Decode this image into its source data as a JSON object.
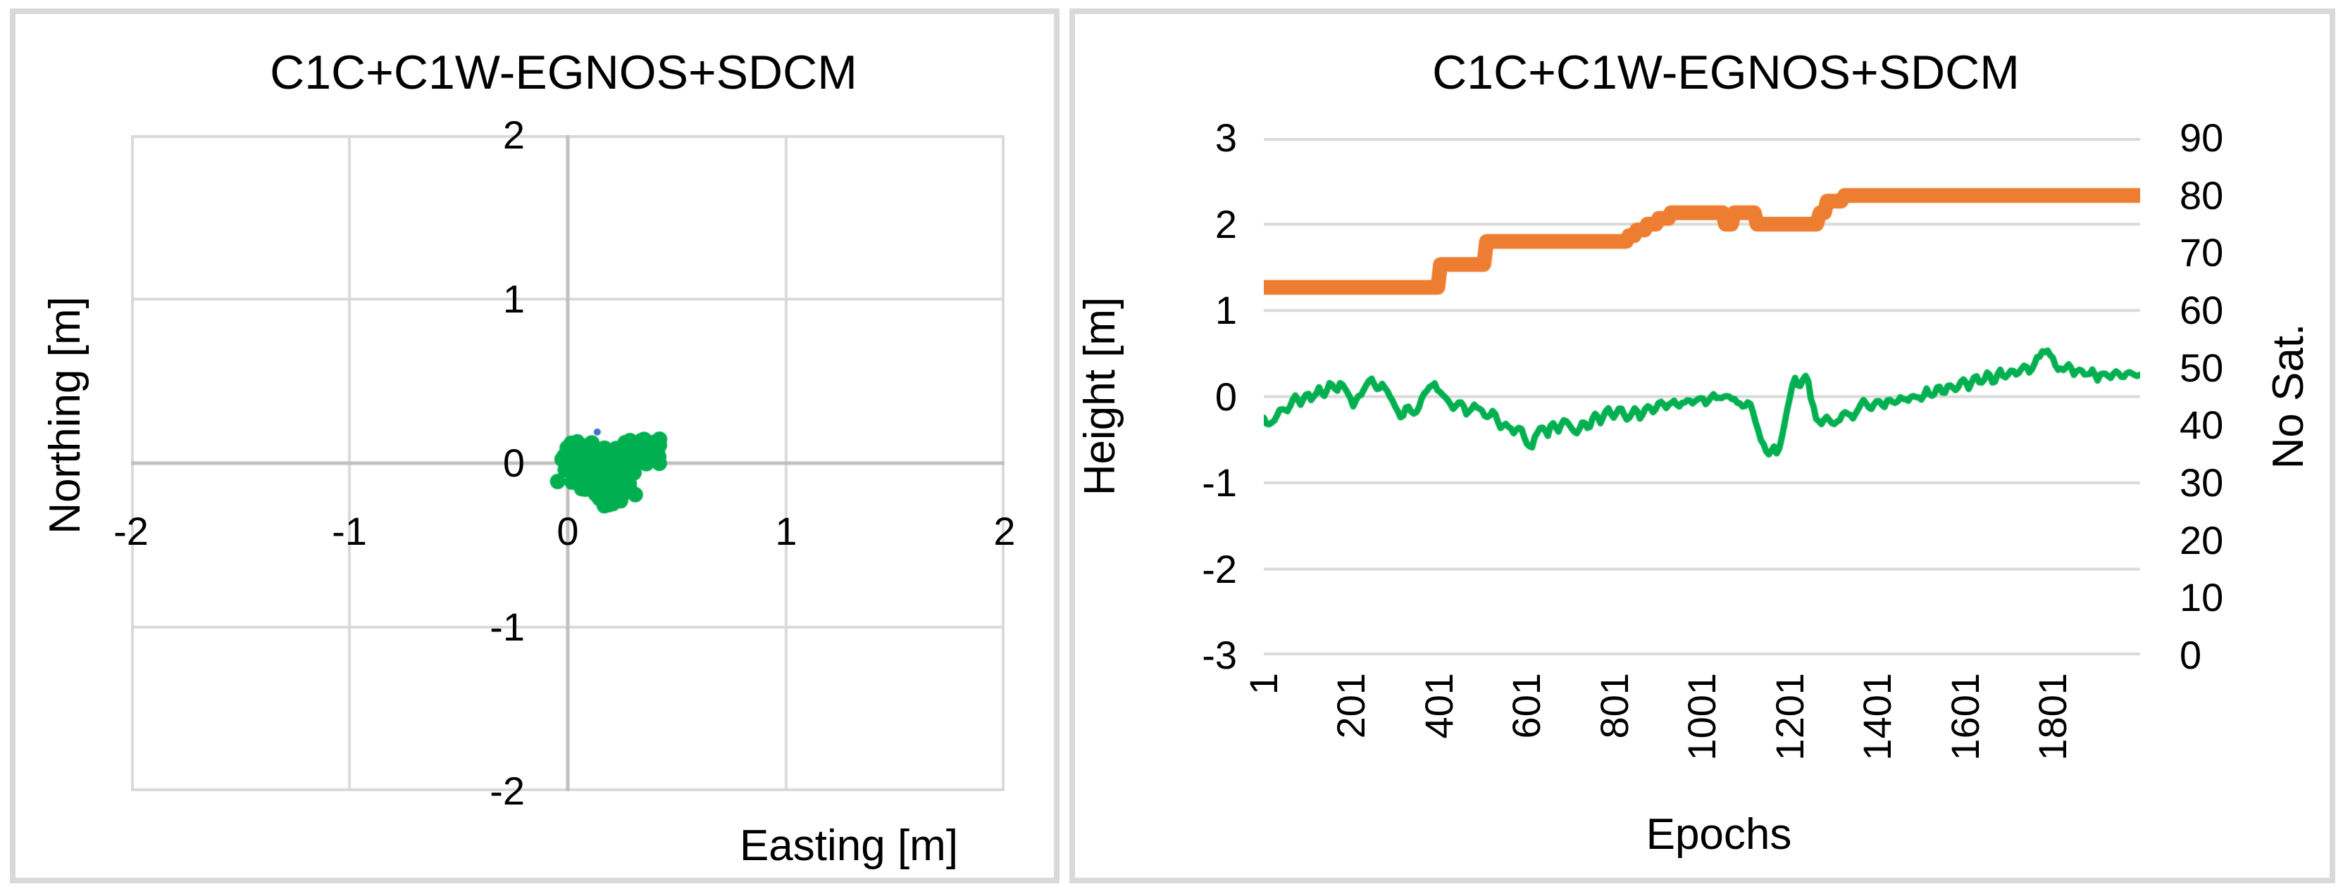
{
  "page": {
    "background": "#ffffff",
    "panel_border_color": "#d9d9d9"
  },
  "chart_data": [
    {
      "type": "scatter",
      "title": "C1C+C1W-EGNOS+SDCM",
      "xlabel": "Easting [m]",
      "ylabel": "Northing [m]",
      "xlim": [
        -2,
        2
      ],
      "ylim": [
        -2,
        2
      ],
      "x_tick_values": [
        -2,
        -1,
        0,
        1,
        2
      ],
      "x_tick_labels": [
        "-2",
        "-1",
        "0",
        "1",
        "2"
      ],
      "y_tick_values": [
        2,
        1,
        0,
        -1,
        -2
      ],
      "y_tick_labels": [
        "2",
        "1",
        "0",
        "-1",
        "-2"
      ],
      "grid": true,
      "gridline_color": "#d9d9d9",
      "axis_line_color": "#bfbfbf",
      "series": [
        {
          "name": "horizontal-position-scatter",
          "color": "#00b050",
          "marker_radius": 11,
          "seed": 42,
          "clusters": [
            {
              "center": [
                0.1,
                -0.02
              ],
              "spread": [
                0.085,
                0.1
              ],
              "count": 150
            },
            {
              "center": [
                0.2,
                -0.15
              ],
              "spread": [
                0.07,
                0.08
              ],
              "count": 60
            },
            {
              "center": [
                0.35,
                0.08
              ],
              "spread": [
                0.075,
                0.05
              ],
              "count": 80
            }
          ],
          "bounds": {
            "e": [
              -0.11,
              0.48
            ],
            "n": [
              -0.33,
              0.23
            ]
          }
        },
        {
          "name": "reference-point",
          "color": "#4472c4",
          "marker_radius": 5,
          "points": [
            [
              0.135,
              0.19
            ]
          ]
        }
      ]
    },
    {
      "type": "line",
      "title": "C1C+C1W-EGNOS+SDCM",
      "xlabel": "Epochs",
      "ylabel_left": "Height [m]",
      "ylabel_right": "No Sat.",
      "xlim": [
        1,
        2000
      ],
      "ylim_left": [
        -3,
        3
      ],
      "ylim_right": [
        0,
        90
      ],
      "x_tick_values": [
        1,
        201,
        401,
        601,
        801,
        1001,
        1201,
        1401,
        1601,
        1801
      ],
      "x_tick_labels": [
        "1",
        "201",
        "401",
        "601",
        "801",
        "1001",
        "1201",
        "1401",
        "1601",
        "1801"
      ],
      "y_tick_left_values": [
        3,
        2,
        1,
        0,
        -1,
        -2,
        -3
      ],
      "y_tick_left_labels": [
        "3",
        "2",
        "1",
        "0",
        "-1",
        "-2",
        "-3"
      ],
      "y_tick_right_values": [
        90,
        80,
        70,
        60,
        50,
        40,
        30,
        20,
        10,
        0
      ],
      "y_tick_right_labels": [
        "90",
        "80",
        "70",
        "60",
        "50",
        "40",
        "30",
        "20",
        "10",
        "0"
      ],
      "grid": "horizontal-only",
      "gridline_color": "#d9d9d9",
      "series": [
        {
          "name": "no-sat-step-line",
          "axis": "right",
          "color": "#ed7d31",
          "points": [
            [
              1,
              64
            ],
            [
              398,
              64
            ],
            [
              404,
              68
            ],
            [
              503,
              68
            ],
            [
              509,
              72
            ],
            [
              828,
              72
            ],
            [
              834,
              73
            ],
            [
              846,
              73
            ],
            [
              852,
              74
            ],
            [
              870,
              74
            ],
            [
              876,
              75
            ],
            [
              896,
              75
            ],
            [
              902,
              76
            ],
            [
              924,
              76
            ],
            [
              930,
              77
            ],
            [
              1048,
              77
            ],
            [
              1054,
              75
            ],
            [
              1068,
              75
            ],
            [
              1074,
              77
            ],
            [
              1120,
              77
            ],
            [
              1126,
              75
            ],
            [
              1262,
              75
            ],
            [
              1270,
              77
            ],
            [
              1280,
              77
            ],
            [
              1286,
              79
            ],
            [
              1318,
              79
            ],
            [
              1326,
              80
            ],
            [
              2000,
              80
            ]
          ]
        },
        {
          "name": "height-line",
          "axis": "left",
          "color": "#00b050",
          "jitter": 0.025,
          "seed": 7,
          "points": [
            [
              1,
              -0.22
            ],
            [
              12,
              -0.35
            ],
            [
              25,
              -0.28
            ],
            [
              40,
              -0.12
            ],
            [
              55,
              -0.18
            ],
            [
              70,
              0.02
            ],
            [
              85,
              -0.08
            ],
            [
              100,
              0.06
            ],
            [
              112,
              -0.06
            ],
            [
              125,
              0.1
            ],
            [
              140,
              0.02
            ],
            [
              152,
              0.18
            ],
            [
              165,
              0.06
            ],
            [
              178,
              0.16
            ],
            [
              192,
              0.04
            ],
            [
              205,
              -0.12
            ],
            [
              218,
              0.0
            ],
            [
              232,
              0.12
            ],
            [
              248,
              0.24
            ],
            [
              260,
              0.06
            ],
            [
              272,
              0.16
            ],
            [
              285,
              0.02
            ],
            [
              300,
              -0.1
            ],
            [
              315,
              -0.24
            ],
            [
              330,
              -0.1
            ],
            [
              345,
              -0.22
            ],
            [
              360,
              -0.04
            ],
            [
              375,
              0.08
            ],
            [
              390,
              0.14
            ],
            [
              405,
              0.04
            ],
            [
              420,
              -0.06
            ],
            [
              435,
              -0.16
            ],
            [
              450,
              -0.06
            ],
            [
              465,
              -0.2
            ],
            [
              480,
              -0.1
            ],
            [
              495,
              -0.16
            ],
            [
              510,
              -0.26
            ],
            [
              525,
              -0.16
            ],
            [
              540,
              -0.36
            ],
            [
              555,
              -0.28
            ],
            [
              570,
              -0.45
            ],
            [
              585,
              -0.32
            ],
            [
              600,
              -0.55
            ],
            [
              610,
              -0.62
            ],
            [
              622,
              -0.45
            ],
            [
              635,
              -0.35
            ],
            [
              648,
              -0.45
            ],
            [
              660,
              -0.3
            ],
            [
              672,
              -0.4
            ],
            [
              685,
              -0.26
            ],
            [
              700,
              -0.36
            ],
            [
              715,
              -0.45
            ],
            [
              728,
              -0.3
            ],
            [
              742,
              -0.38
            ],
            [
              755,
              -0.2
            ],
            [
              770,
              -0.3
            ],
            [
              785,
              -0.12
            ],
            [
              800,
              -0.24
            ],
            [
              815,
              -0.1
            ],
            [
              830,
              -0.26
            ],
            [
              845,
              -0.14
            ],
            [
              860,
              -0.24
            ],
            [
              875,
              -0.1
            ],
            [
              890,
              -0.18
            ],
            [
              905,
              -0.06
            ],
            [
              920,
              -0.14
            ],
            [
              935,
              -0.04
            ],
            [
              950,
              -0.12
            ],
            [
              965,
              -0.02
            ],
            [
              980,
              -0.1
            ],
            [
              995,
              0.0
            ],
            [
              1010,
              -0.08
            ],
            [
              1025,
              0.02
            ],
            [
              1040,
              -0.04
            ],
            [
              1055,
              0.02
            ],
            [
              1070,
              -0.02
            ],
            [
              1082,
              -0.08
            ],
            [
              1095,
              -0.14
            ],
            [
              1108,
              -0.04
            ],
            [
              1118,
              -0.22
            ],
            [
              1132,
              -0.45
            ],
            [
              1146,
              -0.62
            ],
            [
              1156,
              -0.7
            ],
            [
              1164,
              -0.56
            ],
            [
              1172,
              -0.66
            ],
            [
              1182,
              -0.5
            ],
            [
              1194,
              -0.2
            ],
            [
              1204,
              0.08
            ],
            [
              1212,
              0.26
            ],
            [
              1222,
              0.06
            ],
            [
              1232,
              0.2
            ],
            [
              1240,
              0.24
            ],
            [
              1250,
              -0.04
            ],
            [
              1260,
              -0.24
            ],
            [
              1272,
              -0.32
            ],
            [
              1286,
              -0.24
            ],
            [
              1300,
              -0.34
            ],
            [
              1315,
              -0.26
            ],
            [
              1330,
              -0.16
            ],
            [
              1344,
              -0.26
            ],
            [
              1358,
              -0.14
            ],
            [
              1372,
              -0.04
            ],
            [
              1386,
              -0.14
            ],
            [
              1400,
              -0.04
            ],
            [
              1415,
              -0.14
            ],
            [
              1428,
              -0.02
            ],
            [
              1442,
              -0.1
            ],
            [
              1456,
              0.0
            ],
            [
              1470,
              -0.08
            ],
            [
              1484,
              0.04
            ],
            [
              1498,
              -0.04
            ],
            [
              1512,
              0.08
            ],
            [
              1526,
              0.0
            ],
            [
              1540,
              0.12
            ],
            [
              1554,
              0.04
            ],
            [
              1568,
              0.16
            ],
            [
              1582,
              0.06
            ],
            [
              1596,
              0.22
            ],
            [
              1610,
              0.1
            ],
            [
              1624,
              0.26
            ],
            [
              1638,
              0.14
            ],
            [
              1652,
              0.28
            ],
            [
              1666,
              0.16
            ],
            [
              1680,
              0.3
            ],
            [
              1694,
              0.2
            ],
            [
              1708,
              0.34
            ],
            [
              1722,
              0.24
            ],
            [
              1736,
              0.38
            ],
            [
              1750,
              0.28
            ],
            [
              1764,
              0.44
            ],
            [
              1778,
              0.52
            ],
            [
              1790,
              0.55
            ],
            [
              1800,
              0.44
            ],
            [
              1812,
              0.34
            ],
            [
              1824,
              0.28
            ],
            [
              1836,
              0.38
            ],
            [
              1850,
              0.26
            ],
            [
              1862,
              0.34
            ],
            [
              1876,
              0.22
            ],
            [
              1890,
              0.32
            ],
            [
              1904,
              0.2
            ],
            [
              1918,
              0.3
            ],
            [
              1932,
              0.22
            ],
            [
              1946,
              0.28
            ],
            [
              1960,
              0.2
            ],
            [
              1974,
              0.28
            ],
            [
              1988,
              0.24
            ],
            [
              2000,
              0.26
            ]
          ]
        }
      ]
    }
  ]
}
